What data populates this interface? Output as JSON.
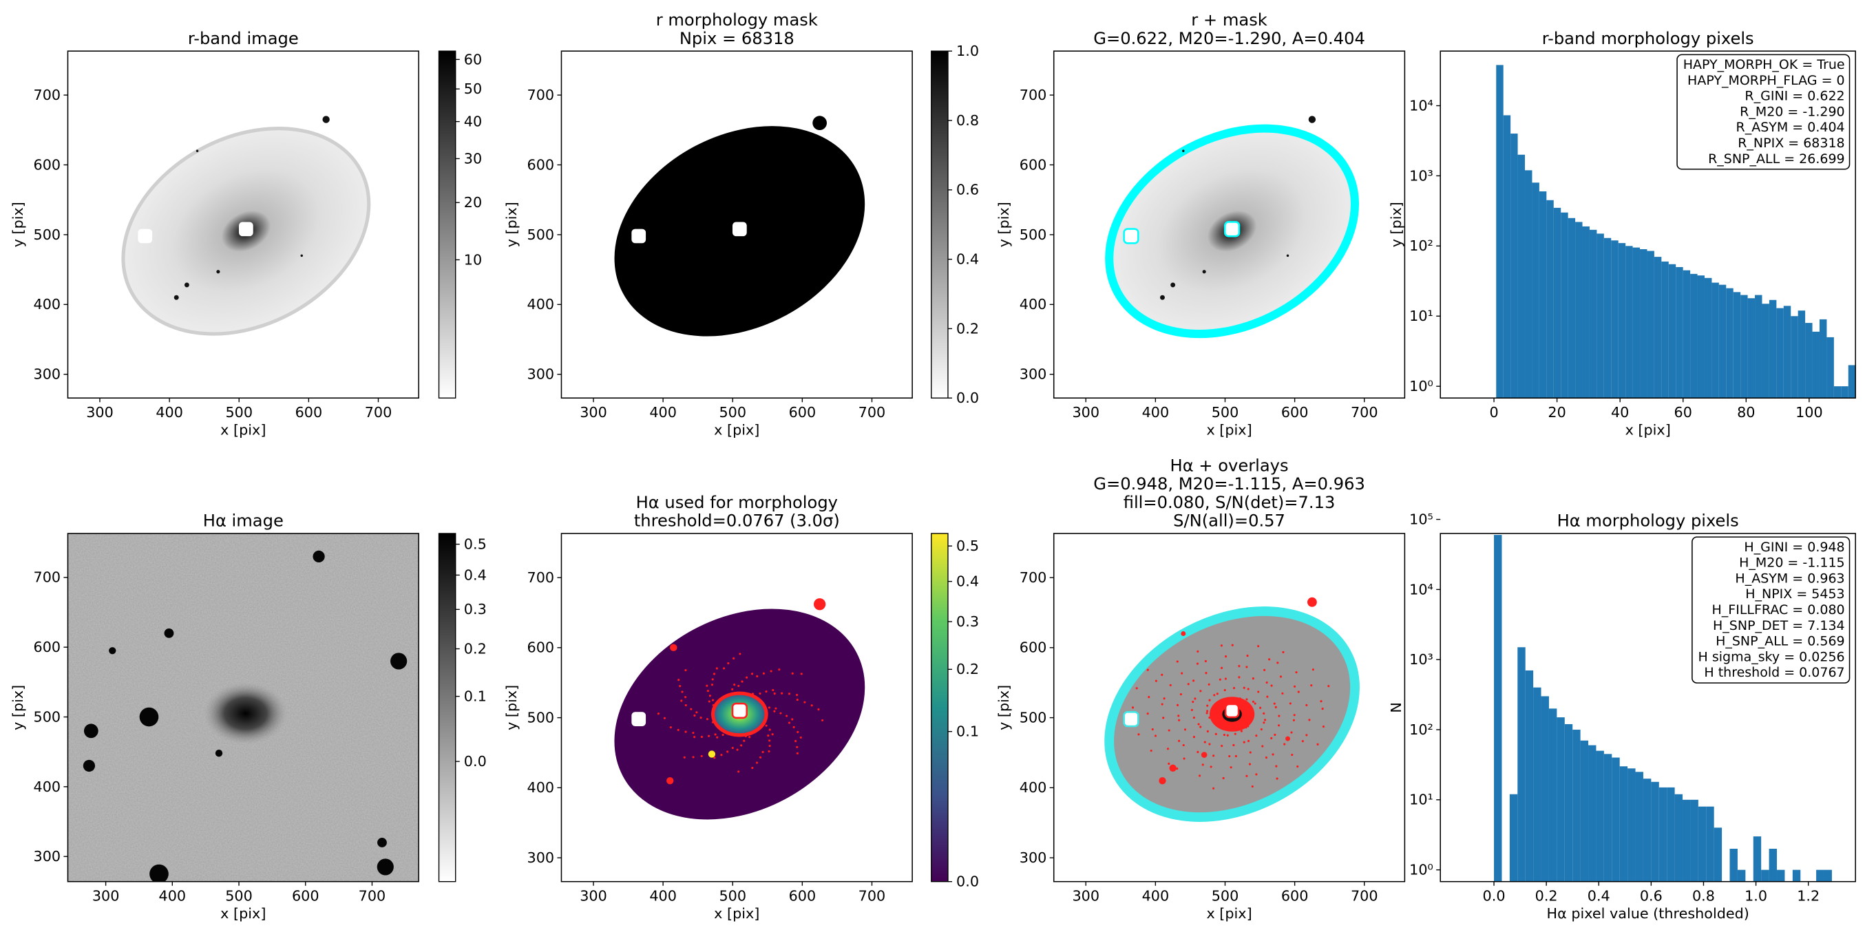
{
  "chart_data": [
    {
      "type": "image",
      "title": [
        "r-band image"
      ],
      "xlabel": "x [pix]",
      "ylabel": "y [pix]",
      "xlim": [
        254,
        758
      ],
      "ylim": [
        266,
        763
      ],
      "xticks": [
        300,
        400,
        500,
        600,
        700
      ],
      "yticks": [
        300,
        400,
        500,
        600,
        700
      ],
      "colorbar": {
        "scale": "sqrt",
        "clim": [
          0,
          63
        ],
        "colors": [
          "#ffffff",
          "#000000"
        ],
        "ticks": [
          10,
          20,
          30,
          40,
          50,
          60
        ]
      }
    },
    {
      "type": "image",
      "title": [
        "r morphology mask",
        "Npix = 68318"
      ],
      "xlabel": "x [pix]",
      "ylabel": "y [pix]",
      "xlim": [
        254,
        758
      ],
      "ylim": [
        266,
        763
      ],
      "xticks": [
        300,
        400,
        500,
        600,
        700
      ],
      "yticks": [
        300,
        400,
        500,
        600,
        700
      ],
      "colorbar": {
        "scale": "linear",
        "clim": [
          0,
          1
        ],
        "colors": [
          "#ffffff",
          "#000000"
        ],
        "ticks": [
          {
            "value": 0,
            "label": "0.0"
          },
          {
            "value": 0.2,
            "label": "0.2"
          },
          {
            "value": 0.4,
            "label": "0.4"
          },
          {
            "value": 0.6,
            "label": "0.6"
          },
          {
            "value": 0.8,
            "label": "0.8"
          },
          {
            "value": 1,
            "label": "1.0"
          }
        ]
      }
    },
    {
      "type": "image",
      "title": [
        "r + mask",
        "G=0.622, M20=-1.290, A=0.404"
      ],
      "xlabel": "x [pix]",
      "ylabel": "y [pix]",
      "xlim": [
        254,
        758
      ],
      "ylim": [
        266,
        763
      ],
      "xticks": [
        300,
        400,
        500,
        600,
        700
      ],
      "yticks": [
        300,
        400,
        500,
        600,
        700
      ]
    },
    {
      "type": "histogram",
      "title": [
        "r-band morphology pixels"
      ],
      "xlabel": "x [pix]",
      "ylabel": "y [pix]",
      "color": "#1f77b4",
      "log_y": true,
      "bins": [
        0.7,
        2.98,
        5.26,
        7.54,
        9.82,
        12.1,
        14.38,
        16.66,
        18.94,
        21.22,
        23.5,
        25.78,
        28.06,
        30.34,
        32.62,
        34.9,
        37.18,
        39.46,
        41.74,
        44.02,
        46.3,
        48.58,
        50.86,
        53.14,
        55.42,
        57.7,
        59.98,
        62.26,
        64.54,
        66.82,
        69.1,
        71.38,
        73.66,
        75.94,
        78.22,
        80.5,
        82.78,
        85.06,
        87.34,
        89.62,
        91.9,
        94.18,
        96.46,
        98.74,
        101.02,
        103.3,
        105.58,
        107.86,
        110.14,
        112.42,
        114.7
      ],
      "counts": [
        38000,
        7300,
        4000,
        2000,
        1200,
        800,
        600,
        450,
        350,
        300,
        250,
        220,
        190,
        170,
        150,
        130,
        120,
        110,
        100,
        95,
        90,
        85,
        70,
        60,
        55,
        50,
        45,
        40,
        38,
        35,
        30,
        28,
        25,
        22,
        20,
        18,
        20,
        15,
        17,
        13,
        14,
        10,
        12,
        8,
        6,
        9,
        5,
        1,
        1,
        2
      ],
      "xlim": [
        -17,
        114.7
      ],
      "ylim": [
        0.68,
        60000
      ],
      "xticks": [
        0,
        20,
        40,
        60,
        80,
        100
      ],
      "yticks": [
        {
          "value": 1,
          "label": "10⁰"
        },
        {
          "value": 10,
          "label": "10¹"
        },
        {
          "value": 100,
          "label": "10²"
        },
        {
          "value": 1000,
          "label": "10³"
        },
        {
          "value": 10000,
          "label": "10⁴"
        }
      ],
      "annotation": [
        "HAPY_MORPH_OK = True",
        "HAPY_MORPH_FLAG = 0",
        "R_GINI = 0.622",
        "R_M20 = -1.290",
        "R_ASYM = 0.404",
        "R_NPIX = 68318",
        "R_SNP_ALL = 26.699"
      ]
    },
    {
      "type": "image",
      "title": [
        "Hα image"
      ],
      "xlabel": "x [pix]",
      "ylabel": "y [pix]",
      "xlim": [
        243,
        770
      ],
      "ylim": [
        264,
        763
      ],
      "xticks": [
        300,
        400,
        500,
        600,
        700
      ],
      "yticks": [
        300,
        400,
        500,
        600,
        700
      ],
      "colorbar": {
        "scale": "sqrt",
        "clim": [
          -0.0726,
          0.537
        ],
        "colors": [
          "#ffffff",
          "#000000"
        ],
        "ticks": [
          {
            "value": 0,
            "label": "0.0"
          },
          0.1,
          0.2,
          0.3,
          0.4,
          0.5
        ]
      }
    },
    {
      "type": "image",
      "title": [
        "Hα used for morphology",
        "threshold=0.0767 (3.0σ)"
      ],
      "xlabel": "x [pix]",
      "ylabel": "y [pix]",
      "xlim": [
        254,
        758
      ],
      "ylim": [
        266,
        763
      ],
      "xticks": [
        300,
        400,
        500,
        600,
        700
      ],
      "yticks": [
        300,
        400,
        500,
        600,
        700
      ],
      "colorbar": {
        "scale": "sqrt",
        "clim": [
          0,
          0.538
        ],
        "colors": [
          "#440154",
          "#3b528b",
          "#21918c",
          "#5ec962",
          "#fde725"
        ],
        "ticks": [
          {
            "value": 0,
            "label": "0.0"
          },
          0.1,
          0.2,
          0.3,
          0.4,
          0.5
        ]
      }
    },
    {
      "type": "image",
      "title": [
        "Hα + overlays",
        "G=0.948, M20=-1.115, A=0.963",
        "fill=0.080, S/N(det)=7.13",
        "S/N(all)=0.57"
      ],
      "xlabel": "x [pix]",
      "ylabel": "y [pix]",
      "xlim": [
        254,
        758
      ],
      "ylim": [
        266,
        763
      ],
      "xticks": [
        300,
        400,
        500,
        600,
        700
      ],
      "yticks": [
        300,
        400,
        500,
        600,
        700
      ]
    },
    {
      "type": "histogram",
      "title": [
        "Hα morphology pixels"
      ],
      "xlabel": "Hα pixel value (thresholded)",
      "ylabel": "N",
      "color": "#1f77b4",
      "log_y": true,
      "bins": [
        0,
        0.03,
        0.06,
        0.09,
        0.12,
        0.15,
        0.18,
        0.21,
        0.24,
        0.27,
        0.3,
        0.33,
        0.36,
        0.39,
        0.42,
        0.45,
        0.48,
        0.51,
        0.54,
        0.57,
        0.6,
        0.63,
        0.66,
        0.69,
        0.72,
        0.75,
        0.78,
        0.81,
        0.84,
        0.87,
        0.9,
        0.93,
        0.96,
        0.99,
        1.02,
        1.05,
        1.08,
        1.11,
        1.14,
        1.17,
        1.2,
        1.23,
        1.26,
        1.29
      ],
      "counts": [
        60000,
        0,
        12,
        1500,
        700,
        400,
        300,
        200,
        150,
        120,
        100,
        70,
        60,
        50,
        45,
        40,
        30,
        28,
        25,
        20,
        18,
        15,
        15,
        12,
        10,
        10,
        8,
        8,
        4,
        0,
        2,
        1,
        0,
        3,
        1,
        2,
        1,
        0,
        1,
        0,
        0,
        1,
        1
      ],
      "xlim": [
        -0.2045,
        1.38
      ],
      "ylim": [
        0.68,
        63000
      ],
      "xticks": [
        {
          "value": 0,
          "label": "0.0"
        },
        0.2,
        0.4,
        0.6,
        0.8,
        {
          "value": 1,
          "label": "1.0"
        },
        1.2
      ],
      "yticks": [
        {
          "value": 1,
          "label": "10⁰"
        },
        {
          "value": 10,
          "label": "10¹"
        },
        {
          "value": 100,
          "label": "10²"
        },
        {
          "value": 1000,
          "label": "10³"
        },
        {
          "value": 10000,
          "label": "10⁴"
        },
        {
          "value": 100000,
          "label": "10⁵"
        }
      ],
      "annotation": [
        "H_GINI = 0.948",
        "H_M20 = -1.115",
        "H_ASYM = 0.963",
        "H_NPIX = 5453",
        "H_FILLFRAC = 0.080",
        "H_SNP_DET = 7.134",
        "H_SNP_ALL = 0.569",
        "H sigma_sky = 0.0256",
        "H threshold = 0.0767"
      ]
    }
  ]
}
